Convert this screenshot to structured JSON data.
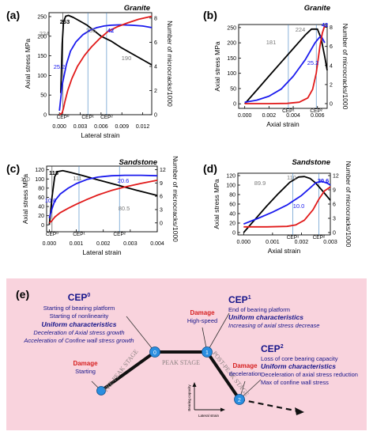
{
  "chart_data": [
    {
      "panel": "(a)",
      "type": "line",
      "title": "Granite",
      "xlabel": "Lateral strain",
      "ylabel": "Axial stress MPa",
      "y2label": "Number of microcracks/1000",
      "xlim": [
        -0.0015,
        0.0133
      ],
      "ylim": [
        0,
        260
      ],
      "y2lim": [
        0,
        8.45
      ],
      "xticks": [
        0.0,
        0.003,
        0.006,
        0.009,
        0.012
      ],
      "xtick_labels": [
        "0.000",
        "0.003",
        "0.006",
        "0.009",
        "0.012"
      ],
      "yticks": [
        0,
        50,
        100,
        150,
        200,
        250
      ],
      "y2ticks": [
        0,
        2,
        4,
        6,
        8
      ],
      "series": [
        {
          "axis": "left",
          "color": "#000000",
          "x": [
            0.0002,
            0.0004,
            0.0006,
            0.0009,
            0.0013,
            0.002,
            0.003,
            0.004,
            0.005,
            0.006,
            0.0075,
            0.009,
            0.0105,
            0.0133
          ],
          "y": [
            55,
            180,
            237,
            251,
            253,
            248,
            238,
            228,
            214,
            200,
            187,
            170,
            155,
            127
          ]
        },
        {
          "axis": "left",
          "color": "#1a1aee",
          "x": [
            0.0,
            0.0004,
            0.001,
            0.0016,
            0.0024,
            0.0034,
            0.0044,
            0.0054,
            0.0064,
            0.0074,
            0.0088,
            0.0104,
            0.012,
            0.0133
          ],
          "y": [
            10,
            76,
            128,
            162,
            186,
            204,
            215,
            222,
            226,
            228,
            229,
            228,
            226,
            222
          ]
        },
        {
          "axis": "right",
          "color": "#e11a1a",
          "x": [
            0.0,
            0.0004,
            0.0006,
            0.0008,
            0.0012,
            0.0018,
            0.0026,
            0.0036,
            0.0046,
            0.0058,
            0.007,
            0.0084,
            0.0098,
            0.0114,
            0.0133
          ],
          "y": [
            0.0,
            0.15,
            0.55,
            1.1,
            2.0,
            3.0,
            4.0,
            4.9,
            5.6,
            6.3,
            6.9,
            7.3,
            7.6,
            7.9,
            8.15
          ]
        }
      ],
      "cep_lines": [
        0.0005,
        0.0041,
        0.0068
      ],
      "cep_labels": [
        "CEP⁰",
        "CEP¹",
        "CEP²"
      ],
      "annotations": [
        "224",
        "253",
        "235",
        "42",
        "25.2",
        "190"
      ]
    },
    {
      "panel": "(b)",
      "type": "line",
      "title": "Granite",
      "xlabel": "Axial strain",
      "ylabel": "Axial stress MPa",
      "y2label": "Number of microcracks/1000",
      "xlim": [
        -0.0005,
        0.0068
      ],
      "ylim": [
        -15,
        260
      ],
      "y2lim": [
        -0.5,
        8.3
      ],
      "xticks": [
        0.0,
        0.002,
        0.004,
        0.006
      ],
      "xtick_labels": [
        "0.000",
        "0.002",
        "0.004",
        "0.006"
      ],
      "yticks": [
        0,
        50,
        100,
        150,
        200,
        250
      ],
      "y2ticks": [
        0,
        2,
        4,
        6,
        8
      ],
      "series": [
        {
          "axis": "left",
          "color": "#000000",
          "x": [
            0.0,
            0.001,
            0.002,
            0.003,
            0.004,
            0.005,
            0.0055,
            0.006,
            0.0063,
            0.0066,
            0.0068
          ],
          "y": [
            0,
            45,
            91,
            136,
            181,
            226,
            245,
            245,
            215,
            155,
            110
          ]
        },
        {
          "axis": "left",
          "color": "#1a1aee",
          "x": [
            0.0,
            0.001,
            0.002,
            0.003,
            0.004,
            0.005,
            0.0058,
            0.0061,
            0.0063,
            0.0066
          ],
          "y": [
            5,
            12,
            25,
            48,
            90,
            145,
            200,
            215,
            222,
            200
          ]
        },
        {
          "axis": "right",
          "color": "#e11a1a",
          "x": [
            0.0,
            0.002,
            0.0035,
            0.0045,
            0.0052,
            0.0056,
            0.0059,
            0.0062,
            0.0064,
            0.0066
          ],
          "y": [
            0.0,
            0.0,
            0.02,
            0.15,
            0.6,
            1.5,
            3.2,
            6.0,
            7.4,
            8.2
          ]
        }
      ],
      "cep_lines": [
        0.0036,
        0.0059
      ],
      "cep_labels": [
        "CEP¹",
        "CEP²"
      ],
      "annotations": [
        "181",
        "224",
        "42",
        "25.2"
      ]
    },
    {
      "panel": "(c)",
      "type": "line",
      "title": "Sandstone",
      "xlabel": "Lateral strain",
      "ylabel": "Axial stress MPa",
      "y2label": "Number of microcracks/1000",
      "xlim": [
        -0.0001,
        0.004
      ],
      "ylim": [
        -15,
        128
      ],
      "y2lim": [
        -2.0,
        12.8
      ],
      "xticks": [
        0.0,
        0.001,
        0.002,
        0.003,
        0.004
      ],
      "xtick_labels": [
        "0.000",
        "0.001",
        "0.002",
        "0.003",
        "0.004"
      ],
      "yticks": [
        0,
        20,
        40,
        60,
        80,
        100,
        120
      ],
      "y2ticks": [
        0,
        3,
        6,
        9,
        12
      ],
      "series": [
        {
          "axis": "left",
          "color": "#000000",
          "x": [
            0.0,
            0.0001,
            0.0002,
            0.0003,
            0.0005,
            0.0008,
            0.0012,
            0.0018,
            0.0025,
            0.0032,
            0.004
          ],
          "y": [
            0,
            60,
            105,
            116,
            118,
            114,
            108,
            98,
            87,
            76,
            64
          ]
        },
        {
          "axis": "left",
          "color": "#1a1aee",
          "x": [
            0.0,
            0.0001,
            0.0002,
            0.0004,
            0.0007,
            0.001,
            0.0014,
            0.0018,
            0.0023,
            0.0028,
            0.0034,
            0.004
          ],
          "y": [
            15,
            35,
            52,
            67,
            80,
            90,
            99,
            104,
            107,
            108,
            108,
            107
          ]
        },
        {
          "axis": "right",
          "color": "#e11a1a",
          "x": [
            0.0,
            0.0001,
            0.0002,
            0.0004,
            0.0007,
            0.001,
            0.0014,
            0.0018,
            0.0023,
            0.0028,
            0.0034,
            0.004
          ],
          "y": [
            0.0,
            0.5,
            1.3,
            2.3,
            3.3,
            4.2,
            5.3,
            6.3,
            7.3,
            8.1,
            8.9,
            9.6
          ]
        }
      ],
      "cep_lines": [
        0.0001,
        0.0011,
        0.0026
      ],
      "cep_labels": [
        "CEP⁰",
        "CEP¹",
        "CEP²"
      ],
      "annotations": [
        "110",
        "118",
        "111",
        "20.6",
        "10.0",
        "80.5"
      ]
    },
    {
      "panel": "(d)",
      "type": "line",
      "title": "Sandstone",
      "xlabel": "Axial strain",
      "ylabel": "Axial stress MPa",
      "y2label": "Number of microcracks/1000",
      "xlim": [
        -0.0002,
        0.003
      ],
      "ylim": [
        -5,
        125
      ],
      "y2lim": [
        -0.5,
        12.5
      ],
      "xticks": [
        0.0,
        0.001,
        0.002,
        0.003
      ],
      "xtick_labels": [
        "0.000",
        "0.001",
        "0.002",
        "0.003"
      ],
      "yticks": [
        0,
        20,
        40,
        60,
        80,
        100,
        120
      ],
      "y2ticks": [
        0,
        3,
        6,
        9,
        12
      ],
      "series": [
        {
          "axis": "left",
          "color": "#000000",
          "x": [
            0.0,
            0.0004,
            0.0008,
            0.0012,
            0.0016,
            0.0019,
            0.0021,
            0.0023,
            0.0025,
            0.0027,
            0.003
          ],
          "y": [
            0,
            28,
            56,
            82,
            106,
            117,
            118,
            114,
            104,
            90,
            68
          ]
        },
        {
          "axis": "left",
          "color": "#1a1aee",
          "x": [
            0.0,
            0.0005,
            0.001,
            0.0015,
            0.002,
            0.0023,
            0.0025,
            0.0027,
            0.0029,
            0.003
          ],
          "y": [
            18,
            30,
            43,
            58,
            78,
            94,
            105,
            108,
            104,
            100
          ]
        },
        {
          "axis": "right",
          "color": "#e11a1a",
          "x": [
            0.0,
            0.0008,
            0.0015,
            0.0018,
            0.0021,
            0.0024,
            0.0026,
            0.0028,
            0.003
          ],
          "y": [
            1.2,
            1.2,
            1.3,
            1.6,
            2.6,
            4.8,
            7.0,
            8.8,
            9.6
          ]
        }
      ],
      "cep_lines": [
        0.0017,
        0.0026
      ],
      "cep_labels": [
        "CEP¹",
        "CEP²"
      ],
      "annotations": [
        "89.9",
        "110",
        "20.6",
        "10.0"
      ]
    }
  ],
  "panel_e": {
    "label": "(e)",
    "cep0": {
      "title": "CEP",
      "sup": "0",
      "lines": [
        "Starting of bearing platform",
        "Starting of nonlinearity"
      ],
      "uniform": "Uniform characteristics",
      "italic_lines": [
        "Deceleration of Axial stress growth",
        "Acceleration of Confine wall stress growth"
      ]
    },
    "cep1": {
      "title": "CEP",
      "sup": "1",
      "lines": [
        "End of bearing platform"
      ],
      "uniform": "Uniform characteristics",
      "italic_lines": [
        "Increasing of axial stress decrease"
      ]
    },
    "cep2": {
      "title": "CEP",
      "sup": "2",
      "lines": [
        "Loss of core bearing capacity"
      ],
      "uniform": "Uniform characteristics",
      "plain_lines": [
        "Deceleration of axial stress reduction",
        "Max of confine wall stress"
      ]
    },
    "damage_start": {
      "title": "Damage",
      "sub": "Starting"
    },
    "damage_high": {
      "title": "Damage",
      "sub": "High-speed"
    },
    "damage_decel": {
      "title": "Damage",
      "sub": "deceleration"
    },
    "stages": {
      "pre_peak": "PRE-PEAK STAGE",
      "peak": "PEAK STAGE",
      "post_peak": "POST-PEAK STAGE"
    },
    "node_labels": [
      "0",
      "1",
      "2"
    ],
    "inset_axes": {
      "x": "Lateral strain",
      "y": "Bearing capacity"
    },
    "colors": {
      "background": "#f9d3dd",
      "node": "#2a8ee0",
      "damage": "#d61f1f",
      "cep_text": "#15148a"
    }
  }
}
